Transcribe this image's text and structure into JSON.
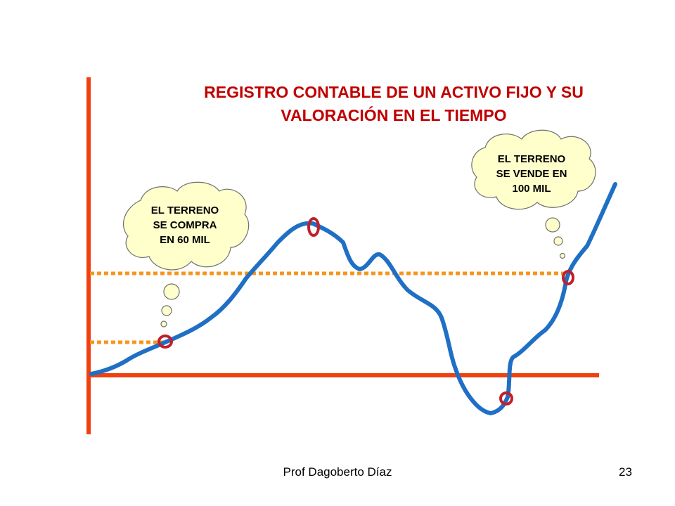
{
  "title": {
    "line1": "REGISTRO CONTABLE DE UN ACTIVO FIJO Y SU",
    "line2": "VALORACIÓN EN EL TIEMPO"
  },
  "clouds": {
    "buy": {
      "line1": "EL TERRENO",
      "line2": "SE COMPRA",
      "line3": "EN 60 MIL"
    },
    "sell": {
      "line1": "EL TERRENO",
      "line2": "SE VENDE EN",
      "line3": "100 MIL"
    }
  },
  "footer": {
    "author": "Prof Dagoberto Díaz",
    "page_number": "23"
  },
  "colors": {
    "title": "#c00000",
    "axes": "#f04010",
    "curve": "#1f6fc5",
    "dotted": "#f5961e",
    "markers": "#c0202a",
    "cloud_fill": "#ffffcc"
  }
}
